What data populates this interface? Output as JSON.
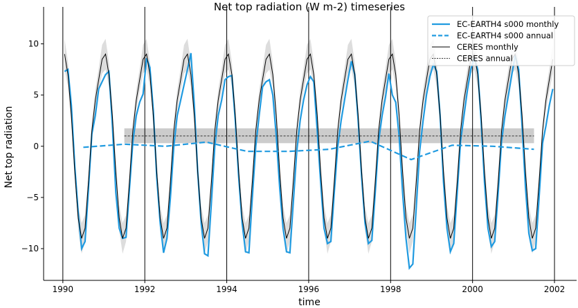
{
  "chart_data": {
    "type": "line",
    "title": "Net top radiation (W m-2) timeseries",
    "xlabel": "time",
    "ylabel": "Net top radiation",
    "xlim": [
      1989.53,
      2002.54
    ],
    "ylim": [
      -13.1,
      12.8
    ],
    "xticks": [
      "1990",
      "1992",
      "1994",
      "1996",
      "1998",
      "2000",
      "2002"
    ],
    "yticks": [
      "−10",
      "−5",
      "0",
      "5",
      "10"
    ],
    "vertical_lines_at_years": [
      1990,
      1992,
      1994,
      1996,
      1998,
      2000,
      2002
    ],
    "grid": false,
    "legend_position": "top-right",
    "colors": {
      "model": "#1f9ae0",
      "ceres": "#000000",
      "band": "#cccccc",
      "monthly_band": "#dddddd"
    },
    "series": [
      {
        "name": "EC-EARTH4 s000 monthly",
        "style": "solid",
        "start_year": 1990,
        "monthly_values_by_year": [
          [
            7.3,
            7.5,
            4.0,
            -2.0,
            -6.5,
            -10.0,
            -9.3,
            -4.2,
            1.2,
            3.0,
            5.6,
            6.3
          ],
          [
            7.0,
            7.3,
            2.1,
            -4.5,
            -8.0,
            -9.0,
            -8.9,
            -4.2,
            0.4,
            3.0,
            4.3,
            5.1
          ],
          [
            8.6,
            7.7,
            3.5,
            -3.0,
            -7.5,
            -10.4,
            -9.0,
            -5.0,
            0.0,
            3.0,
            4.5,
            6.0
          ],
          [
            7.5,
            9.1,
            4.0,
            -2.5,
            -7.5,
            -10.5,
            -10.7,
            -5.5,
            0.0,
            3.0,
            4.5,
            6.5
          ],
          [
            6.8,
            6.9,
            2.5,
            -3.0,
            -7.5,
            -10.3,
            -10.4,
            -5.0,
            0.0,
            3.0,
            5.8,
            6.3
          ],
          [
            6.5,
            5.0,
            1.0,
            -4.0,
            -8.0,
            -10.3,
            -10.4,
            -5.5,
            -0.5,
            2.5,
            4.5,
            6.0
          ],
          [
            6.8,
            6.3,
            1.5,
            -3.5,
            -8.0,
            -9.5,
            -9.3,
            -4.5,
            0.0,
            2.5,
            4.5,
            6.5
          ],
          [
            8.3,
            7.0,
            2.5,
            -3.0,
            -7.5,
            -9.5,
            -9.2,
            -4.5,
            0.5,
            3.0,
            4.8,
            7.1
          ],
          [
            5.0,
            4.3,
            1.0,
            -4.5,
            -9.0,
            -11.9,
            -11.5,
            -6.0,
            -0.5,
            2.5,
            5.0,
            6.8
          ],
          [
            8.0,
            7.3,
            3.0,
            -3.5,
            -8.0,
            -10.3,
            -9.5,
            -4.5,
            0.5,
            3.0,
            5.5,
            7.5
          ],
          [
            8.6,
            7.5,
            2.5,
            -3.5,
            -8.0,
            -9.8,
            -9.3,
            -4.5,
            0.5,
            3.0,
            5.0,
            7.0
          ],
          [
            8.9,
            7.5,
            2.0,
            -4.0,
            -8.5,
            -10.2,
            -10.0,
            -5.0,
            0.3,
            2.0,
            4.0,
            5.6
          ]
        ]
      },
      {
        "name": "EC-EARTH4 s000 annual",
        "style": "dashed",
        "x": [
          1990.5,
          1991.5,
          1992.5,
          1993.5,
          1994.5,
          1995.5,
          1996.5,
          1997.5,
          1998.5,
          1999.5,
          2000.5,
          2001.5
        ],
        "y": [
          -0.1,
          0.2,
          0.0,
          0.4,
          -0.5,
          -0.5,
          -0.3,
          0.5,
          -1.3,
          0.1,
          0.0,
          -0.3
        ]
      },
      {
        "name": "CERES monthly",
        "style": "solid",
        "repeated_climatology_years": [
          1990,
          2001
        ],
        "monthly_climatology": [
          9.0,
          7.0,
          3.0,
          -2.5,
          -7.0,
          -9.0,
          -8.0,
          -3.5,
          1.5,
          4.5,
          6.5,
          8.5
        ],
        "monthly_std": [
          1.5,
          1.2,
          1.0,
          1.0,
          1.2,
          1.5,
          1.3,
          1.0,
          0.9,
          1.0,
          1.1,
          1.4
        ]
      },
      {
        "name": "CERES annual",
        "style": "dotted",
        "x": [
          1991.5,
          2001.5
        ],
        "y": [
          1.0,
          1.0
        ],
        "band": [
          0.3,
          1.75
        ]
      }
    ]
  }
}
